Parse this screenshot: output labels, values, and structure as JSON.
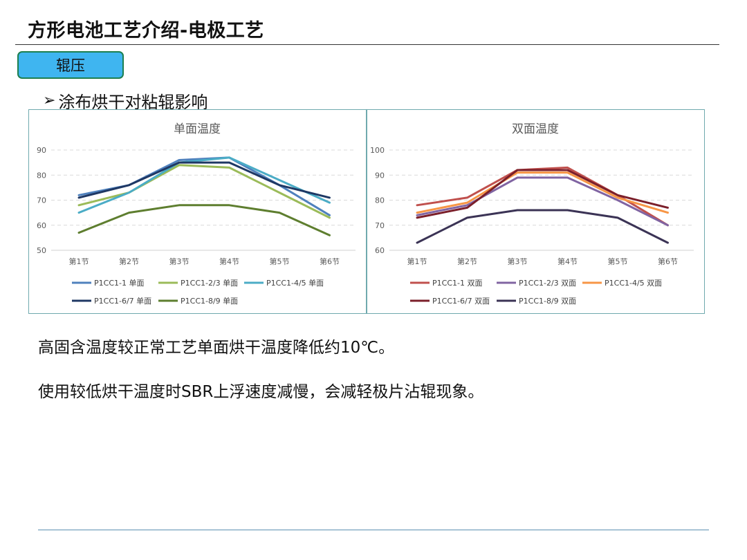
{
  "slide_title": "方形电池工艺介绍-电极工艺",
  "section_tag": "辊压",
  "bullet": {
    "arrow": "➢",
    "text": "涂布烘干对粘辊影响"
  },
  "chart_data": [
    {
      "type": "line",
      "title": "单面温度",
      "categories": [
        "第1节",
        "第2节",
        "第3节",
        "第4节",
        "第5节",
        "第6节"
      ],
      "yticks": [
        50,
        60,
        70,
        80,
        90
      ],
      "ylim": [
        50,
        90
      ],
      "series": [
        {
          "name": "P1CC1-1 单面",
          "color": "#4f81bd",
          "values": [
            72,
            76,
            86,
            87,
            76,
            64
          ]
        },
        {
          "name": "P1CC1-2/3 单面",
          "color": "#9bbb59",
          "values": [
            68,
            73,
            84,
            83,
            73,
            63
          ]
        },
        {
          "name": "P1CC1-4/5 单面",
          "color": "#4bacc6",
          "values": [
            65,
            73,
            85,
            87,
            78,
            69
          ]
        },
        {
          "name": "P1CC1-6/7 单面",
          "color": "#1f3864",
          "values": [
            71,
            76,
            85,
            85,
            76,
            71
          ]
        },
        {
          "name": "P1CC1-8/9 单面",
          "color": "#5e7e2f",
          "values": [
            57,
            65,
            68,
            68,
            65,
            56
          ]
        }
      ]
    },
    {
      "type": "line",
      "title": "双面温度",
      "categories": [
        "第1节",
        "第2节",
        "第3节",
        "第4节",
        "第5节",
        "第6节"
      ],
      "yticks": [
        60,
        70,
        80,
        90,
        100
      ],
      "ylim": [
        60,
        100
      ],
      "series": [
        {
          "name": "P1CC1-1 双面",
          "color": "#c0504d",
          "values": [
            78,
            81,
            92,
            93,
            82,
            70
          ]
        },
        {
          "name": "P1CC1-2/3 双面",
          "color": "#8064a2",
          "values": [
            74,
            78,
            89,
            89,
            80,
            70
          ]
        },
        {
          "name": "P1CC1-4/5 双面",
          "color": "#f79646",
          "values": [
            75,
            79,
            91,
            91,
            81,
            75
          ]
        },
        {
          "name": "P1CC1-6/7 双面",
          "color": "#7b1f2a",
          "values": [
            73,
            77,
            92,
            92,
            82,
            77
          ]
        },
        {
          "name": "P1CC1-8/9 双面",
          "color": "#3b3355",
          "values": [
            63,
            73,
            76,
            76,
            73,
            63
          ]
        }
      ]
    }
  ],
  "paragraphs": [
    "高固含温度较正常工艺单面烘干温度降低约10℃。",
    "使用较低烘干温度时SBR上浮速度减慢，会减轻极片沾辊现象。"
  ]
}
